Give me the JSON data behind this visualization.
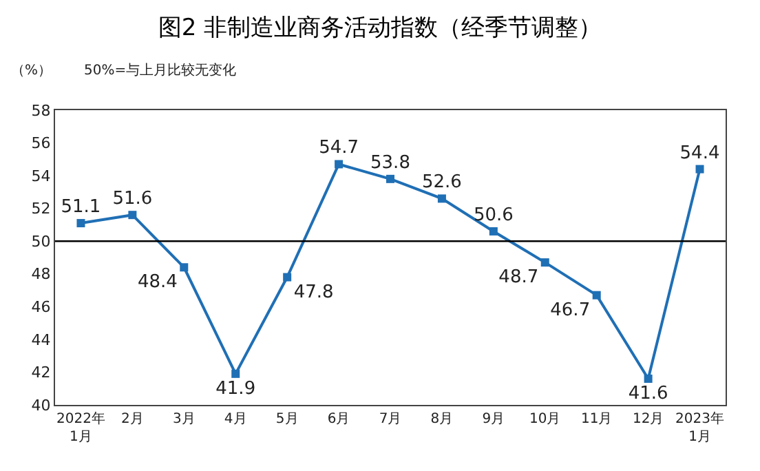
{
  "chart_data": {
    "type": "line",
    "title": "图2 非制造业商务活动指数（经季节调整）",
    "annotations": [
      "（%）",
      "50%=与上月比较无变化"
    ],
    "categories": [
      "2022年\n1月",
      "2月",
      "3月",
      "4月",
      "5月",
      "6月",
      "7月",
      "8月",
      "9月",
      "10月",
      "11月",
      "12月",
      "2023年\n1月"
    ],
    "series": [
      {
        "color": "#1f6fb5",
        "values": [
          51.1,
          51.6,
          48.4,
          41.9,
          47.8,
          54.7,
          53.8,
          52.6,
          50.6,
          48.7,
          46.7,
          41.6,
          54.4
        ]
      }
    ],
    "ylim": [
      40,
      58
    ],
    "yticks": [
      40,
      42,
      44,
      46,
      48,
      50,
      52,
      54,
      56,
      58
    ],
    "ref_lines": [
      {
        "axis": "y",
        "value": 50,
        "color": "#000000"
      }
    ],
    "data_labels": true,
    "legend": false,
    "marker": "square",
    "line_style": "solid"
  }
}
